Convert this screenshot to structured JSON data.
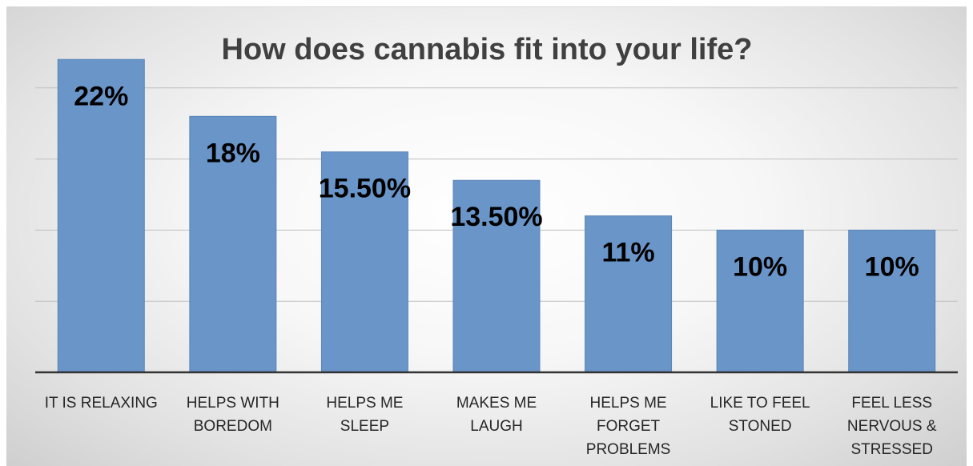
{
  "chart_data": {
    "type": "bar",
    "title": "How does cannabis fit into your life?",
    "categories": [
      [
        "IT IS RELAXING"
      ],
      [
        "HELPS WITH",
        "BOREDOM"
      ],
      [
        "HELPS ME",
        "SLEEP"
      ],
      [
        "MAKES ME",
        "LAUGH"
      ],
      [
        "HELPS ME",
        "FORGET",
        "PROBLEMS"
      ],
      [
        "LIKE TO FEEL",
        "STONED"
      ],
      [
        "FEEL LESS",
        "NERVOUS &",
        "STRESSED"
      ]
    ],
    "values": [
      22,
      18,
      15.5,
      13.5,
      11,
      10,
      10
    ],
    "data_labels": [
      "22%",
      "18%",
      "15.50%",
      "13.50%",
      "11%",
      "10%",
      "10%"
    ],
    "ylim": [
      0,
      25
    ],
    "grid": true,
    "legend": "none",
    "colors": {
      "bar": "#6a95c9",
      "bar_edge": "#5a84b8",
      "grid": "#bfbfbf",
      "axis": "#333333"
    }
  }
}
